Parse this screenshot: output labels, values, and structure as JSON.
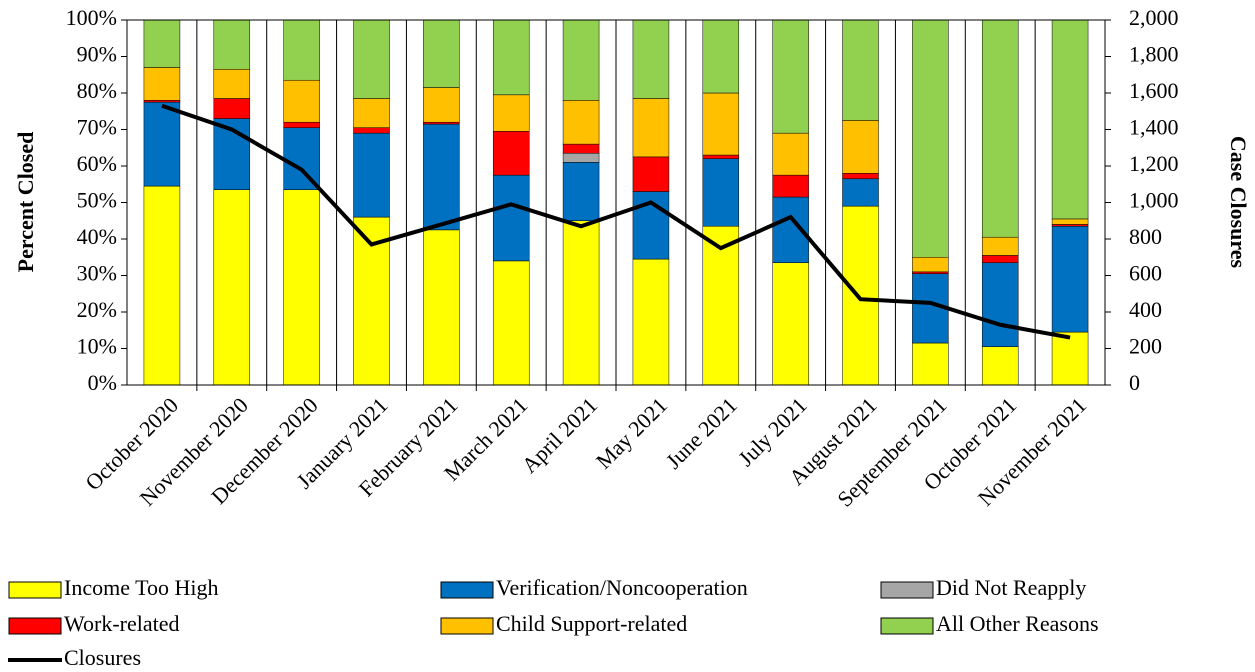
{
  "chart_data": {
    "type": "bar",
    "stacked": true,
    "y_label": "Percent Closed",
    "y2_label": "Case Closures",
    "categories": [
      "October 2020",
      "November 2020",
      "December 2020",
      "January 2021",
      "February 2021",
      "March 2021",
      "April 2021",
      "May 2021",
      "June 2021",
      "July 2021",
      "August 2021",
      "September 2021",
      "October 2021",
      "November 2021"
    ],
    "series": [
      {
        "name": "Income Too High",
        "color": "#ffff00",
        "values": [
          54.5,
          53.5,
          53.5,
          46,
          42.5,
          34,
          45,
          34.5,
          43.5,
          33.5,
          49,
          11.5,
          10.5,
          14.5
        ]
      },
      {
        "name": "Verification/Noncooperation",
        "color": "#0070c0",
        "values": [
          23,
          19.5,
          17,
          23,
          29,
          23.5,
          16,
          18.5,
          18.5,
          18,
          7.5,
          19,
          23,
          29
        ]
      },
      {
        "name": "Did Not Reapply",
        "color": "#a6a6a6",
        "values": [
          0,
          0,
          0,
          0,
          0,
          0,
          2.5,
          0,
          0,
          0,
          0,
          0,
          0,
          0
        ]
      },
      {
        "name": "Work-related",
        "color": "#ff0000",
        "values": [
          0.5,
          5.5,
          1.5,
          1.5,
          0.5,
          12,
          2.5,
          9.5,
          1,
          6,
          1.5,
          0.5,
          2,
          0.5
        ]
      },
      {
        "name": "Child Support-related",
        "color": "#ffc000",
        "values": [
          9,
          8,
          11.5,
          8,
          9.5,
          10,
          12,
          16,
          17,
          11.5,
          14.5,
          4,
          5,
          1.5
        ]
      },
      {
        "name": "All Other Reasons",
        "color": "#92d050",
        "values": [
          13,
          13.5,
          16.5,
          21.5,
          18.5,
          20.5,
          22,
          21.5,
          20,
          31,
          27.5,
          65,
          59.5,
          54.5
        ]
      },
      {
        "name": "Closures",
        "color": "#000000",
        "type": "line",
        "axis": "y2",
        "values": [
          1530,
          1400,
          1180,
          770,
          880,
          990,
          870,
          1000,
          750,
          920,
          470,
          450,
          330,
          260
        ]
      }
    ],
    "ylim": [
      0,
      100
    ],
    "yticks": [
      {
        "value": 0,
        "label": "0%"
      },
      {
        "value": 10,
        "label": "10%"
      },
      {
        "value": 20,
        "label": "20%"
      },
      {
        "value": 30,
        "label": "30%"
      },
      {
        "value": 40,
        "label": "40%"
      },
      {
        "value": 50,
        "label": "50%"
      },
      {
        "value": 60,
        "label": "60%"
      },
      {
        "value": 70,
        "label": "70%"
      },
      {
        "value": 80,
        "label": "80%"
      },
      {
        "value": 90,
        "label": "90%"
      },
      {
        "value": 100,
        "label": "100%"
      }
    ],
    "y2lim": [
      0,
      2000
    ],
    "y2ticks": [
      0,
      200,
      400,
      600,
      800,
      {
        "value": 1000,
        "label": "1,000"
      },
      {
        "value": 1200,
        "label": "1,200"
      },
      {
        "value": 1400,
        "label": "1,400"
      },
      {
        "value": 1600,
        "label": "1,600"
      },
      {
        "value": 1800,
        "label": "1,800"
      },
      {
        "value": 2000,
        "label": "2,000"
      }
    ],
    "legend": "bottom"
  }
}
